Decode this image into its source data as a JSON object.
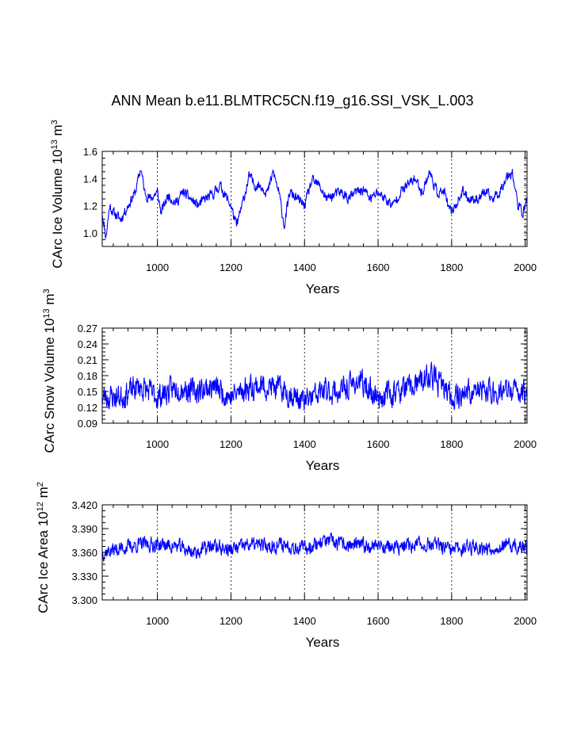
{
  "title": "ANN Mean b.e11.BLMTRC5CN.f19_g16.SSI_VSK_L.003",
  "colors": {
    "series": "#0000ff",
    "axis": "#000000",
    "grid": "#000000"
  },
  "chart_data": [
    {
      "type": "line",
      "id": "ice-volume",
      "xlabel": "Years",
      "ylabel_main": "CArc Ice Volume 10",
      "ylabel_exp": "13",
      "ylabel_unit": " m",
      "ylabel_unit_exp": "3",
      "xlim": [
        850,
        2005
      ],
      "ylim": [
        0.9,
        1.6
      ],
      "xticks": [
        1000,
        1200,
        1400,
        1600,
        1800,
        2000
      ],
      "xtick_labels": [
        "1000",
        "1200",
        "1400",
        "1600",
        "1800",
        "2000"
      ],
      "yticks": [
        1.0,
        1.2,
        1.4,
        1.6
      ],
      "ytick_labels": [
        "1.0",
        "1.2",
        "1.4",
        "1.6"
      ],
      "grid_x": true,
      "series": [
        {
          "name": "ice-volume",
          "anchors": [
            [
              850,
              1.15
            ],
            [
              860,
              0.97
            ],
            [
              870,
              1.2
            ],
            [
              880,
              1.15
            ],
            [
              900,
              1.1
            ],
            [
              920,
              1.2
            ],
            [
              940,
              1.3
            ],
            [
              955,
              1.48
            ],
            [
              965,
              1.3
            ],
            [
              980,
              1.25
            ],
            [
              1000,
              1.3
            ],
            [
              1010,
              1.15
            ],
            [
              1030,
              1.28
            ],
            [
              1050,
              1.22
            ],
            [
              1070,
              1.3
            ],
            [
              1090,
              1.25
            ],
            [
              1110,
              1.2
            ],
            [
              1130,
              1.25
            ],
            [
              1150,
              1.28
            ],
            [
              1170,
              1.35
            ],
            [
              1190,
              1.25
            ],
            [
              1200,
              1.2
            ],
            [
              1215,
              1.05
            ],
            [
              1230,
              1.2
            ],
            [
              1250,
              1.42
            ],
            [
              1265,
              1.35
            ],
            [
              1280,
              1.35
            ],
            [
              1300,
              1.3
            ],
            [
              1315,
              1.45
            ],
            [
              1330,
              1.3
            ],
            [
              1345,
              1.05
            ],
            [
              1360,
              1.3
            ],
            [
              1380,
              1.25
            ],
            [
              1400,
              1.2
            ],
            [
              1420,
              1.38
            ],
            [
              1440,
              1.35
            ],
            [
              1460,
              1.25
            ],
            [
              1480,
              1.28
            ],
            [
              1500,
              1.3
            ],
            [
              1520,
              1.25
            ],
            [
              1540,
              1.3
            ],
            [
              1560,
              1.32
            ],
            [
              1580,
              1.25
            ],
            [
              1600,
              1.3
            ],
            [
              1620,
              1.25
            ],
            [
              1640,
              1.2
            ],
            [
              1660,
              1.3
            ],
            [
              1680,
              1.35
            ],
            [
              1700,
              1.4
            ],
            [
              1720,
              1.3
            ],
            [
              1740,
              1.45
            ],
            [
              1760,
              1.3
            ],
            [
              1780,
              1.3
            ],
            [
              1795,
              1.15
            ],
            [
              1810,
              1.2
            ],
            [
              1830,
              1.3
            ],
            [
              1850,
              1.25
            ],
            [
              1870,
              1.25
            ],
            [
              1890,
              1.3
            ],
            [
              1910,
              1.25
            ],
            [
              1930,
              1.3
            ],
            [
              1950,
              1.42
            ],
            [
              1965,
              1.45
            ],
            [
              1980,
              1.2
            ],
            [
              1995,
              1.15
            ],
            [
              2005,
              1.25
            ]
          ],
          "noise": 0.045,
          "seed": 11
        }
      ]
    },
    {
      "type": "line",
      "id": "snow-volume",
      "xlabel": "Years",
      "ylabel_main": "CArc Snow Volume 10",
      "ylabel_exp": "13",
      "ylabel_unit": " m",
      "ylabel_unit_exp": "3",
      "xlim": [
        850,
        2005
      ],
      "ylim": [
        0.09,
        0.27
      ],
      "xticks": [
        1000,
        1200,
        1400,
        1600,
        1800,
        2000
      ],
      "xtick_labels": [
        "1000",
        "1200",
        "1400",
        "1600",
        "1800",
        "2000"
      ],
      "yticks": [
        0.09,
        0.12,
        0.15,
        0.18,
        0.21,
        0.24,
        0.27
      ],
      "ytick_labels": [
        "0.09",
        "0.12",
        "0.15",
        "0.18",
        "0.21",
        "0.24",
        "0.27"
      ],
      "grid_x": true,
      "series": [
        {
          "name": "snow-volume",
          "anchors": [
            [
              850,
              0.14
            ],
            [
              900,
              0.14
            ],
            [
              950,
              0.16
            ],
            [
              1000,
              0.14
            ],
            [
              1060,
              0.16
            ],
            [
              1100,
              0.15
            ],
            [
              1150,
              0.16
            ],
            [
              1200,
              0.14
            ],
            [
              1250,
              0.16
            ],
            [
              1300,
              0.16
            ],
            [
              1350,
              0.15
            ],
            [
              1400,
              0.13
            ],
            [
              1450,
              0.15
            ],
            [
              1500,
              0.15
            ],
            [
              1545,
              0.17
            ],
            [
              1600,
              0.14
            ],
            [
              1650,
              0.15
            ],
            [
              1700,
              0.16
            ],
            [
              1745,
              0.18
            ],
            [
              1800,
              0.14
            ],
            [
              1850,
              0.15
            ],
            [
              1900,
              0.15
            ],
            [
              1950,
              0.15
            ],
            [
              2005,
              0.15
            ]
          ],
          "noise": 0.028,
          "seed": 23
        }
      ]
    },
    {
      "type": "line",
      "id": "ice-area",
      "xlabel": "Years",
      "ylabel_main": "CArc Ice Area 10",
      "ylabel_exp": "12",
      "ylabel_unit": " m",
      "ylabel_unit_exp": "2",
      "xlim": [
        850,
        2005
      ],
      "ylim": [
        3.3,
        3.42
      ],
      "xticks": [
        1000,
        1200,
        1400,
        1600,
        1800,
        2000
      ],
      "xtick_labels": [
        "1000",
        "1200",
        "1400",
        "1600",
        "1800",
        "2000"
      ],
      "yticks": [
        3.3,
        3.33,
        3.36,
        3.39,
        3.42
      ],
      "ytick_labels": [
        "3.300",
        "3.330",
        "3.360",
        "3.390",
        "3.420"
      ],
      "grid_x": true,
      "series": [
        {
          "name": "ice-area",
          "anchors": [
            [
              850,
              3.36
            ],
            [
              900,
              3.365
            ],
            [
              950,
              3.37
            ],
            [
              1000,
              3.37
            ],
            [
              1050,
              3.368
            ],
            [
              1100,
              3.36
            ],
            [
              1150,
              3.368
            ],
            [
              1200,
              3.363
            ],
            [
              1250,
              3.37
            ],
            [
              1300,
              3.368
            ],
            [
              1350,
              3.37
            ],
            [
              1400,
              3.365
            ],
            [
              1450,
              3.375
            ],
            [
              1500,
              3.37
            ],
            [
              1550,
              3.368
            ],
            [
              1600,
              3.37
            ],
            [
              1650,
              3.365
            ],
            [
              1700,
              3.37
            ],
            [
              1750,
              3.37
            ],
            [
              1800,
              3.362
            ],
            [
              1850,
              3.368
            ],
            [
              1900,
              3.365
            ],
            [
              1950,
              3.368
            ],
            [
              2005,
              3.365
            ]
          ],
          "noise": 0.011,
          "seed": 37
        }
      ]
    }
  ]
}
